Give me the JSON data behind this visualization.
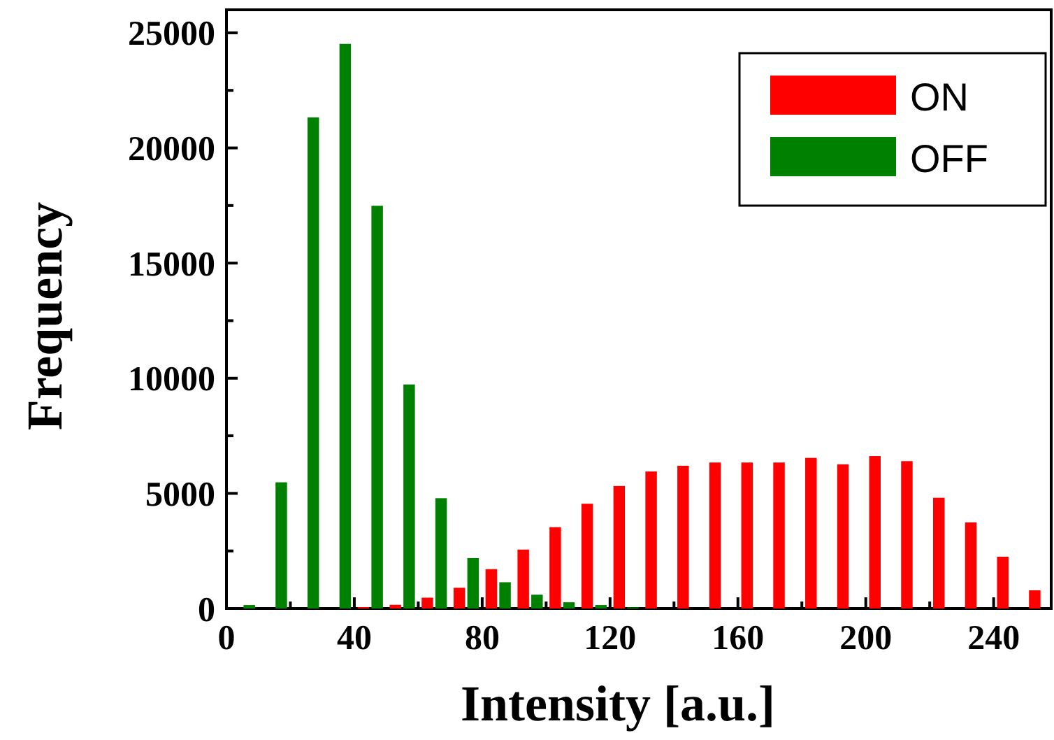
{
  "chart_data": {
    "type": "bar",
    "xlabel": "Intensity [a.u.]",
    "ylabel": "Frequency",
    "x": [
      5,
      15,
      25,
      35,
      45,
      55,
      65,
      75,
      85,
      95,
      105,
      115,
      125,
      135,
      145,
      155,
      165,
      175,
      185,
      195,
      205,
      215,
      225,
      235,
      245,
      255
    ],
    "series": [
      {
        "name": "ON",
        "color": "#ff0000",
        "values": [
          0,
          0,
          0,
          0,
          60,
          160,
          470,
          900,
          1710,
          2560,
          3530,
          4550,
          5320,
          5950,
          6200,
          6340,
          6340,
          6340,
          6540,
          6260,
          6620,
          6400,
          4810,
          3740,
          2250,
          790
        ]
      },
      {
        "name": "OFF",
        "color": "#008000",
        "values": [
          150,
          5480,
          21330,
          24520,
          17490,
          9730,
          4790,
          2190,
          1140,
          600,
          270,
          150,
          50,
          0,
          0,
          0,
          0,
          0,
          0,
          0,
          0,
          0,
          0,
          0,
          0,
          0
        ]
      }
    ],
    "xlim": [
      0,
      258
    ],
    "ylim": [
      0,
      26000
    ],
    "xticks": [
      0,
      {
        "value": 20,
        "label": null
      },
      40,
      {
        "value": 60,
        "label": null
      },
      80,
      {
        "value": 100,
        "label": null
      },
      120,
      {
        "value": 140,
        "label": null
      },
      160,
      {
        "value": 180,
        "label": null
      },
      200,
      {
        "value": 220,
        "label": null
      },
      240
    ],
    "yticks": [
      0,
      {
        "value": 2500,
        "label": null
      },
      5000,
      {
        "value": 7500,
        "label": null
      },
      10000,
      {
        "value": 12500,
        "label": null
      },
      15000,
      {
        "value": 17500,
        "label": null
      },
      20000,
      {
        "value": 22500,
        "label": null
      },
      25000
    ],
    "legend": "top right",
    "grid": false
  }
}
